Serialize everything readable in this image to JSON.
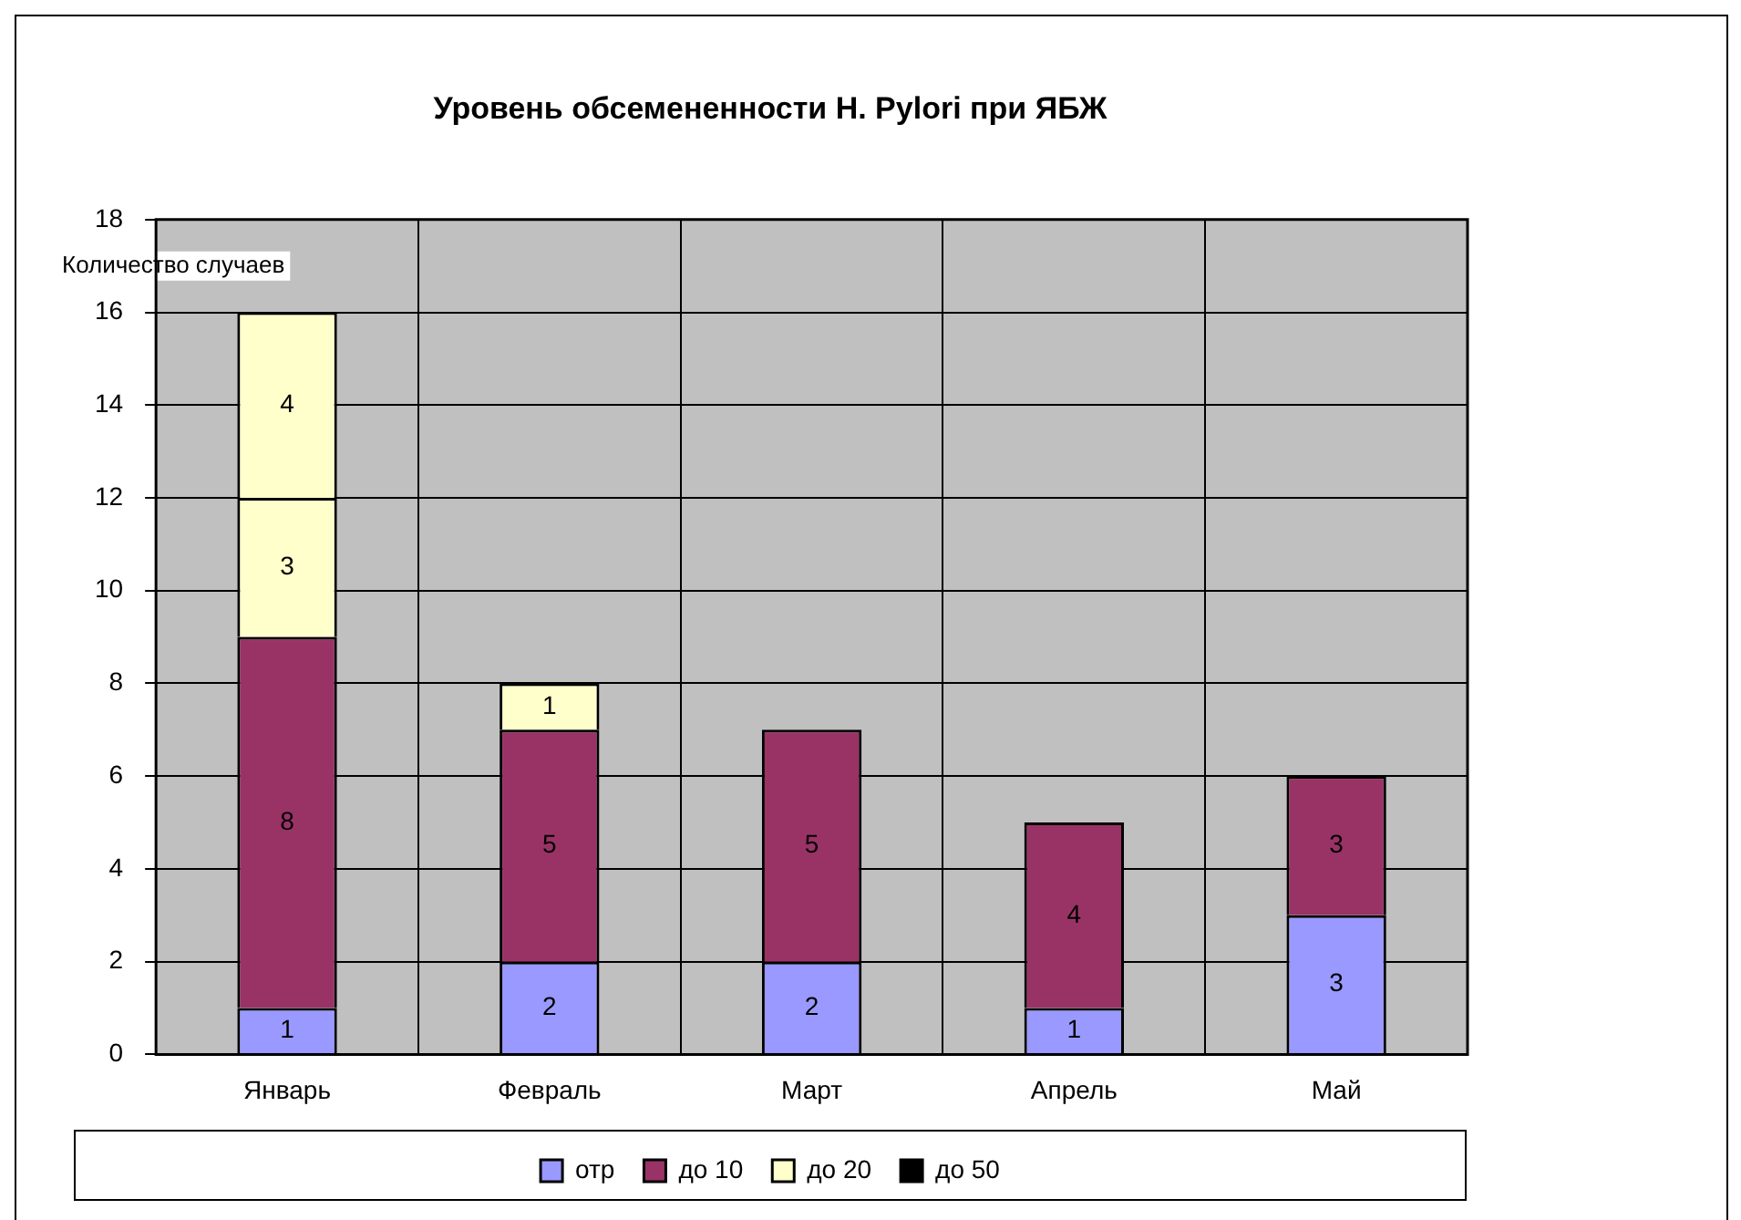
{
  "chart_data": {
    "type": "bar",
    "title": "Уровень обсемененности H. Pylori при ЯБЖ",
    "ylabel": "Количество случаев",
    "categories": [
      "Январь",
      "Февраль",
      "Март",
      "Апрель",
      "Май"
    ],
    "series": [
      {
        "name": "отр",
        "color": "#9999ff",
        "values": [
          1,
          2,
          2,
          1,
          3
        ]
      },
      {
        "name": "до 10",
        "color": "#993366",
        "values": [
          8,
          5,
          5,
          4,
          3
        ]
      },
      {
        "name": "до 20",
        "color": "#ffffcc",
        "values": [
          3,
          1,
          null,
          null,
          null
        ]
      },
      {
        "name": "до 50",
        "color": "#000000",
        "values": [
          null,
          null,
          null,
          null,
          null
        ]
      },
      {
        "color": "#ffffcc",
        "values": [
          4,
          null,
          null,
          null,
          null
        ]
      }
    ],
    "stacked": true,
    "data_labels": true,
    "ylim": [
      0,
      18
    ],
    "yticks": [
      0,
      2,
      4,
      6,
      8,
      10,
      12,
      14,
      16,
      18
    ],
    "grid": true,
    "legend": "bottom"
  }
}
